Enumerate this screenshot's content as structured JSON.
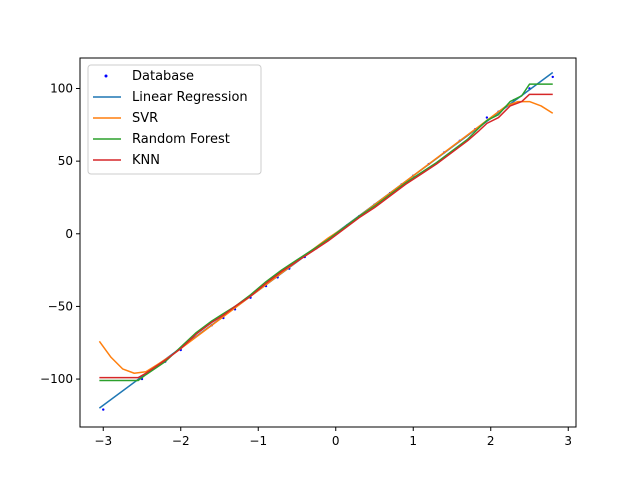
{
  "chart_data": {
    "type": "scatter",
    "title": "",
    "xlabel": "",
    "ylabel": "",
    "xlim": [
      -3.3,
      3.1
    ],
    "ylim": [
      -133,
      121
    ],
    "xticks": [
      -3,
      -2,
      -1,
      0,
      1,
      2,
      3
    ],
    "yticks": [
      -100,
      -50,
      0,
      50,
      100
    ],
    "xtick_labels": [
      "−3",
      "−2",
      "−1",
      "0",
      "1",
      "2",
      "3"
    ],
    "ytick_labels": [
      "−100",
      "−50",
      "0",
      "50",
      "100"
    ],
    "grid": false,
    "legend_position": "top-left",
    "legend": [
      "Database",
      "Linear Regression",
      "SVR",
      "Random Forest",
      "KNN"
    ],
    "series": [
      {
        "name": "Database",
        "kind": "scatter",
        "color": "#0000ff",
        "x": [
          -3.0,
          -2.5,
          -2.2,
          -2.0,
          -1.85,
          -1.6,
          -1.45,
          -1.3,
          -1.1,
          -0.9,
          -0.75,
          -0.6,
          -0.4,
          -0.25,
          -0.1,
          0.0,
          0.15,
          0.3,
          0.5,
          0.7,
          0.85,
          1.0,
          1.2,
          1.4,
          1.6,
          1.8,
          1.95,
          2.1,
          2.3,
          2.5,
          2.8
        ],
        "y": [
          -121,
          -100,
          -88,
          -80,
          -72,
          -63,
          -58,
          -52,
          -44,
          -36,
          -30,
          -24,
          -16,
          -10,
          -4,
          0,
          6,
          12,
          20,
          28,
          34,
          40,
          48,
          56,
          64,
          72,
          80,
          84,
          92,
          100,
          108
        ]
      },
      {
        "name": "Linear Regression",
        "kind": "line",
        "color": "#1f77b4",
        "x": [
          -3.05,
          2.8
        ],
        "y": [
          -120,
          111
        ]
      },
      {
        "name": "SVR",
        "kind": "line",
        "color": "#ff7f0e",
        "x": [
          -3.05,
          -2.9,
          -2.75,
          -2.6,
          -2.45,
          -2.3,
          -2.1,
          -1.9,
          -1.7,
          -1.5,
          -1.3,
          -1.1,
          -0.9,
          -0.7,
          -0.5,
          -0.3,
          -0.1,
          0.1,
          0.3,
          0.5,
          0.7,
          0.9,
          1.1,
          1.3,
          1.5,
          1.7,
          1.9,
          2.05,
          2.2,
          2.35,
          2.5,
          2.65,
          2.8
        ],
        "y": [
          -74,
          -85,
          -93,
          -96,
          -95,
          -90,
          -83,
          -75,
          -67,
          -59,
          -51,
          -43,
          -35,
          -27,
          -19,
          -11,
          -3,
          4,
          12,
          20,
          28,
          36,
          44,
          52,
          60,
          68,
          76,
          82,
          88,
          91,
          91,
          88,
          83
        ]
      },
      {
        "name": "Random Forest",
        "kind": "line",
        "color": "#2ca02c",
        "x": [
          -3.05,
          -2.55,
          -2.45,
          -2.2,
          -2.0,
          -1.8,
          -1.6,
          -1.45,
          -1.3,
          -1.1,
          -0.9,
          -0.7,
          -0.5,
          -0.3,
          -0.1,
          0.1,
          0.3,
          0.5,
          0.7,
          0.9,
          1.1,
          1.3,
          1.5,
          1.7,
          1.85,
          1.95,
          2.1,
          2.25,
          2.4,
          2.5,
          2.8
        ],
        "y": [
          -101,
          -101,
          -97,
          -88,
          -78,
          -68,
          -60,
          -55,
          -50,
          -42,
          -33,
          -25,
          -18,
          -11,
          -4,
          4,
          12,
          19,
          27,
          35,
          42,
          49,
          57,
          65,
          73,
          78,
          82,
          91,
          95,
          103,
          103
        ]
      },
      {
        "name": "KNN",
        "kind": "line",
        "color": "#d62728",
        "x": [
          -3.05,
          -2.55,
          -2.45,
          -2.2,
          -2.0,
          -1.8,
          -1.6,
          -1.45,
          -1.3,
          -1.1,
          -0.9,
          -0.7,
          -0.5,
          -0.3,
          -0.1,
          0.1,
          0.3,
          0.5,
          0.7,
          0.9,
          1.1,
          1.3,
          1.5,
          1.7,
          1.85,
          1.95,
          2.1,
          2.25,
          2.4,
          2.5,
          2.8
        ],
        "y": [
          -99,
          -99,
          -96,
          -87,
          -79,
          -69,
          -61,
          -56,
          -50,
          -43,
          -34,
          -26,
          -19,
          -12,
          -5,
          3,
          11,
          18,
          26,
          34,
          41,
          48,
          56,
          64,
          71,
          76,
          80,
          88,
          91,
          96,
          96
        ]
      }
    ]
  }
}
